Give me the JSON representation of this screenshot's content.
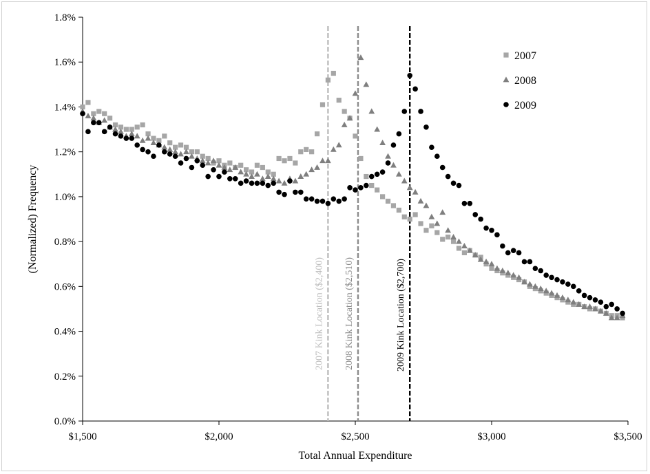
{
  "chart_data": {
    "type": "scatter",
    "title": "",
    "xlabel": "Total Annual Expenditure",
    "ylabel": "(Normalized)  Frequency",
    "xlim": [
      1500,
      3500
    ],
    "ylim": [
      0.0,
      1.8
    ],
    "x_ticks": [
      1500,
      2000,
      2500,
      3000,
      3500
    ],
    "x_tick_labels": [
      "$1,500",
      "$2,000",
      "$2,500",
      "$3,000",
      "$3,500"
    ],
    "y_ticks": [
      0.0,
      0.2,
      0.4,
      0.6,
      0.8,
      1.0,
      1.2,
      1.4,
      1.6,
      1.8
    ],
    "y_tick_labels": [
      "0.0%",
      "0.2%",
      "0.4%",
      "0.6%",
      "0.8%",
      "1.0%",
      "1.2%",
      "1.4%",
      "1.6%",
      "1.8%"
    ],
    "grid": false,
    "legend_position": "top-right",
    "vertical_lines": [
      {
        "x": 2400,
        "label": "2007 Kink  Location  ($2,400)",
        "color": "#bdbdbd"
      },
      {
        "x": 2510,
        "label": "2008 Kink  Location  ($2,510)",
        "color": "#8c8c8c"
      },
      {
        "x": 2700,
        "label": "2009 Kink Location  ($2,700)",
        "color": "#000000"
      }
    ],
    "series": [
      {
        "name": "2007",
        "marker": "square",
        "color": "#a6a6a6",
        "x": [
          1500,
          1520,
          1540,
          1560,
          1580,
          1600,
          1620,
          1640,
          1660,
          1680,
          1700,
          1720,
          1740,
          1760,
          1780,
          1800,
          1820,
          1840,
          1860,
          1880,
          1900,
          1920,
          1940,
          1960,
          1980,
          2000,
          2020,
          2040,
          2060,
          2080,
          2100,
          2120,
          2140,
          2160,
          2180,
          2200,
          2220,
          2240,
          2260,
          2280,
          2300,
          2320,
          2340,
          2360,
          2380,
          2400,
          2420,
          2440,
          2460,
          2480,
          2500,
          2520,
          2540,
          2560,
          2580,
          2600,
          2620,
          2640,
          2660,
          2680,
          2700,
          2720,
          2740,
          2760,
          2780,
          2800,
          2820,
          2840,
          2860,
          2880,
          2900,
          2920,
          2940,
          2960,
          2980,
          3000,
          3020,
          3040,
          3060,
          3080,
          3100,
          3120,
          3140,
          3160,
          3180,
          3200,
          3220,
          3240,
          3260,
          3280,
          3300,
          3320,
          3340,
          3360,
          3380,
          3400,
          3420,
          3440,
          3460,
          3480
        ],
        "y": [
          1.4,
          1.42,
          1.37,
          1.38,
          1.37,
          1.35,
          1.32,
          1.31,
          1.3,
          1.3,
          1.31,
          1.32,
          1.28,
          1.26,
          1.25,
          1.27,
          1.24,
          1.22,
          1.23,
          1.22,
          1.2,
          1.2,
          1.18,
          1.17,
          1.15,
          1.16,
          1.14,
          1.15,
          1.13,
          1.14,
          1.12,
          1.11,
          1.14,
          1.13,
          1.11,
          1.1,
          1.17,
          1.16,
          1.17,
          1.15,
          1.2,
          1.21,
          1.2,
          1.28,
          1.41,
          1.52,
          1.55,
          1.43,
          1.38,
          1.35,
          1.27,
          1.17,
          1.09,
          1.05,
          1.03,
          1.0,
          0.98,
          0.96,
          0.94,
          0.91,
          0.9,
          0.92,
          0.88,
          0.85,
          0.87,
          0.84,
          0.81,
          0.82,
          0.8,
          0.77,
          0.75,
          0.76,
          0.74,
          0.73,
          0.7,
          0.68,
          0.67,
          0.66,
          0.65,
          0.64,
          0.63,
          0.62,
          0.6,
          0.59,
          0.58,
          0.57,
          0.56,
          0.55,
          0.54,
          0.53,
          0.52,
          0.52,
          0.51,
          0.5,
          0.5,
          0.49,
          0.48,
          0.47,
          0.47,
          0.46
        ]
      },
      {
        "name": "2008",
        "marker": "triangle",
        "color": "#7f7f7f",
        "x": [
          1500,
          1520,
          1540,
          1560,
          1580,
          1600,
          1620,
          1640,
          1660,
          1680,
          1700,
          1720,
          1740,
          1760,
          1780,
          1800,
          1820,
          1840,
          1860,
          1880,
          1900,
          1920,
          1940,
          1960,
          1980,
          2000,
          2020,
          2040,
          2060,
          2080,
          2100,
          2120,
          2140,
          2160,
          2180,
          2200,
          2220,
          2240,
          2260,
          2280,
          2300,
          2320,
          2340,
          2360,
          2380,
          2400,
          2420,
          2440,
          2460,
          2480,
          2500,
          2520,
          2540,
          2560,
          2580,
          2600,
          2620,
          2640,
          2660,
          2680,
          2700,
          2720,
          2740,
          2760,
          2780,
          2800,
          2820,
          2840,
          2860,
          2880,
          2900,
          2920,
          2940,
          2960,
          2980,
          3000,
          3020,
          3040,
          3060,
          3080,
          3100,
          3120,
          3140,
          3160,
          3180,
          3200,
          3220,
          3240,
          3260,
          3280,
          3300,
          3320,
          3340,
          3360,
          3380,
          3400,
          3420,
          3440,
          3460,
          3480
        ],
        "y": [
          1.38,
          1.36,
          1.35,
          1.33,
          1.34,
          1.31,
          1.3,
          1.29,
          1.27,
          1.28,
          1.27,
          1.25,
          1.26,
          1.24,
          1.23,
          1.22,
          1.21,
          1.2,
          1.19,
          1.2,
          1.18,
          1.17,
          1.16,
          1.15,
          1.16,
          1.14,
          1.13,
          1.12,
          1.13,
          1.11,
          1.1,
          1.09,
          1.1,
          1.08,
          1.09,
          1.08,
          1.07,
          1.06,
          1.08,
          1.07,
          1.09,
          1.1,
          1.12,
          1.13,
          1.16,
          1.16,
          1.21,
          1.23,
          1.32,
          1.35,
          1.46,
          1.62,
          1.5,
          1.38,
          1.3,
          1.24,
          1.18,
          1.14,
          1.1,
          1.07,
          1.04,
          1.02,
          0.98,
          0.96,
          0.91,
          0.88,
          0.93,
          0.85,
          0.82,
          0.8,
          0.78,
          0.76,
          0.74,
          0.72,
          0.71,
          0.7,
          0.68,
          0.67,
          0.66,
          0.65,
          0.64,
          0.62,
          0.61,
          0.6,
          0.59,
          0.58,
          0.57,
          0.56,
          0.55,
          0.54,
          0.53,
          0.52,
          0.51,
          0.51,
          0.5,
          0.49,
          0.48,
          0.46,
          0.46,
          0.47
        ]
      },
      {
        "name": "2009",
        "marker": "circle",
        "color": "#000000",
        "x": [
          1500,
          1520,
          1540,
          1560,
          1580,
          1600,
          1620,
          1640,
          1660,
          1680,
          1700,
          1720,
          1740,
          1760,
          1780,
          1800,
          1820,
          1840,
          1860,
          1880,
          1900,
          1920,
          1940,
          1960,
          1980,
          2000,
          2020,
          2040,
          2060,
          2080,
          2100,
          2120,
          2140,
          2160,
          2180,
          2200,
          2220,
          2240,
          2260,
          2280,
          2300,
          2320,
          2340,
          2360,
          2380,
          2400,
          2420,
          2440,
          2460,
          2480,
          2500,
          2520,
          2540,
          2560,
          2580,
          2600,
          2620,
          2640,
          2660,
          2680,
          2700,
          2720,
          2740,
          2760,
          2780,
          2800,
          2820,
          2840,
          2860,
          2880,
          2900,
          2920,
          2940,
          2960,
          2980,
          3000,
          3020,
          3040,
          3060,
          3080,
          3100,
          3120,
          3140,
          3160,
          3180,
          3200,
          3220,
          3240,
          3260,
          3280,
          3300,
          3320,
          3340,
          3360,
          3380,
          3400,
          3420,
          3440,
          3460,
          3480
        ],
        "y": [
          1.37,
          1.29,
          1.33,
          1.33,
          1.29,
          1.31,
          1.28,
          1.27,
          1.26,
          1.26,
          1.23,
          1.21,
          1.2,
          1.18,
          1.23,
          1.2,
          1.19,
          1.18,
          1.15,
          1.17,
          1.13,
          1.16,
          1.14,
          1.09,
          1.12,
          1.09,
          1.11,
          1.08,
          1.08,
          1.06,
          1.07,
          1.06,
          1.06,
          1.06,
          1.05,
          1.06,
          1.02,
          1.01,
          1.07,
          1.02,
          1.02,
          0.99,
          0.99,
          0.98,
          0.98,
          0.97,
          0.99,
          0.98,
          0.99,
          1.04,
          1.03,
          1.04,
          1.05,
          1.09,
          1.1,
          1.11,
          1.15,
          1.23,
          1.28,
          1.38,
          1.54,
          1.48,
          1.38,
          1.31,
          1.22,
          1.18,
          1.13,
          1.09,
          1.06,
          1.05,
          0.97,
          0.97,
          0.92,
          0.9,
          0.86,
          0.85,
          0.83,
          0.78,
          0.75,
          0.76,
          0.75,
          0.71,
          0.71,
          0.68,
          0.67,
          0.65,
          0.64,
          0.63,
          0.62,
          0.61,
          0.6,
          0.58,
          0.56,
          0.55,
          0.54,
          0.53,
          0.51,
          0.52,
          0.5,
          0.48
        ]
      }
    ]
  }
}
